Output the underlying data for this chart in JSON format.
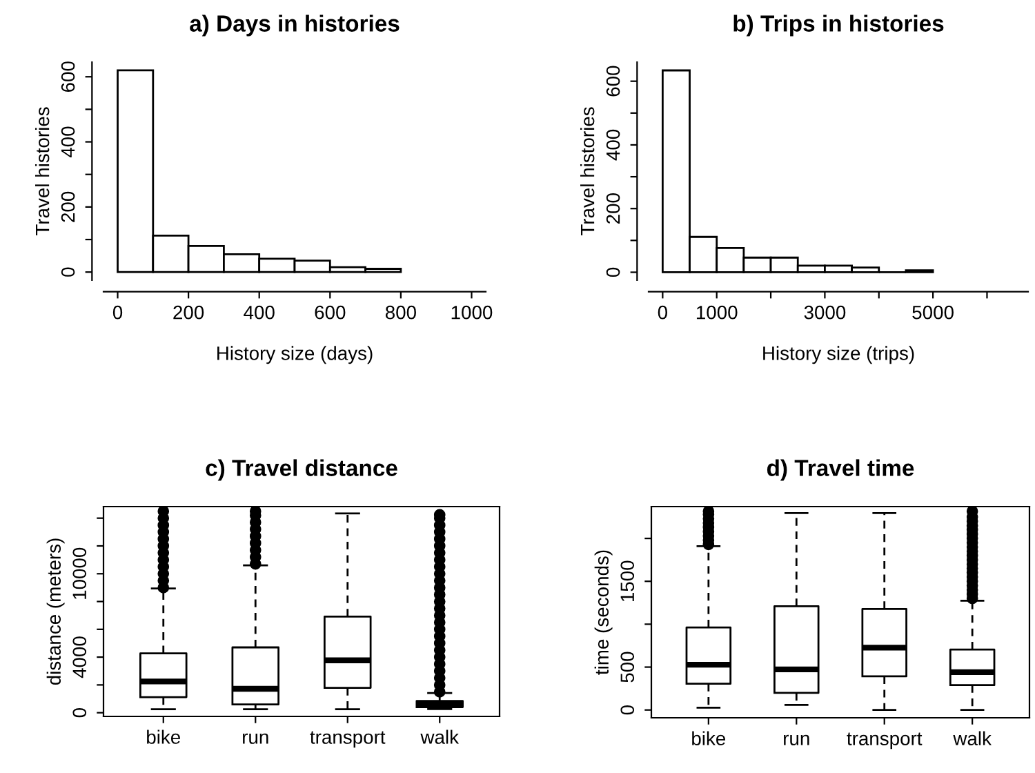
{
  "chart_data": [
    {
      "type": "histogram",
      "title": "a) Days in histories",
      "xlabel": "History size (days)",
      "ylabel": "Travel histories",
      "bins": [
        0,
        100,
        200,
        300,
        400,
        500,
        600,
        700,
        800,
        900,
        1000
      ],
      "values": [
        620,
        112,
        80,
        55,
        41,
        35,
        15,
        10,
        null,
        null
      ],
      "xlim": [
        -40,
        1040
      ],
      "xticks": [
        0,
        200,
        400,
        600,
        800,
        1000
      ],
      "ylim": [
        -25,
        645
      ],
      "yticks": [
        0,
        {
          "value": 100,
          "label": null
        },
        200,
        {
          "value": 300,
          "label": null
        },
        400,
        {
          "value": 500,
          "label": null
        },
        600
      ],
      "grid": false
    },
    {
      "type": "histogram",
      "title": "b) Trips in histories",
      "xlabel": "History size (trips)",
      "ylabel": "Travel histories",
      "bins": [
        0,
        500,
        1000,
        1500,
        2000,
        2500,
        3000,
        3500,
        4000,
        4500,
        5000,
        5500,
        6000,
        6500
      ],
      "values": [
        634,
        111,
        76,
        46,
        46,
        21,
        21,
        15,
        0,
        6,
        null,
        null,
        null
      ],
      "xlim": [
        -260,
        6760
      ],
      "xticks": [
        0,
        1000,
        {
          "value": 2000,
          "label": null
        },
        3000,
        {
          "value": 4000,
          "label": null
        },
        5000,
        {
          "value": 6000,
          "label": null
        }
      ],
      "ylim": [
        -25,
        660
      ],
      "yticks": [
        0,
        {
          "value": 100,
          "label": null
        },
        200,
        {
          "value": 300,
          "label": null
        },
        400,
        {
          "value": 500,
          "label": null
        },
        600
      ],
      "grid": false
    },
    {
      "type": "box",
      "title": "c) Travel distance",
      "ylabel": "distance (meters)",
      "categories": [
        "bike",
        "run",
        "transport",
        "walk"
      ],
      "boxes": [
        {
          "low": 250,
          "q1": 1120,
          "median": 2250,
          "q3": 4270,
          "high": 8940,
          "outliers": [
            9000,
            9500,
            10000,
            10500,
            11000,
            11500,
            12000,
            12500,
            13000,
            13500,
            14000,
            14500
          ]
        },
        {
          "low": 250,
          "q1": 600,
          "median": 1720,
          "q3": 4700,
          "high": 10600,
          "outliers": [
            10700,
            11200,
            11700,
            12200,
            12700,
            13200,
            13700,
            14200,
            14500
          ]
        },
        {
          "low": 250,
          "q1": 1790,
          "median": 3770,
          "q3": 6920,
          "high": 14340
        },
        {
          "low": 265,
          "q1": 400,
          "median": 600,
          "q3": 850,
          "high": 1420,
          "outliers": [
            1500,
            2000,
            2500,
            3000,
            3500,
            4000,
            4500,
            5000,
            5500,
            6000,
            6500,
            7000,
            7500,
            8000,
            8500,
            9000,
            9500,
            10000,
            10500,
            11000,
            11500,
            12000,
            12500,
            13000,
            13500,
            14000,
            14240
          ]
        }
      ],
      "ylim": [
        -265,
        14830
      ],
      "yticks": [
        0,
        {
          "value": 2000,
          "label": null
        },
        4000,
        {
          "value": 6000,
          "label": null
        },
        {
          "value": 8000,
          "label": null
        },
        10000,
        {
          "value": 12000,
          "label": null
        },
        {
          "value": 14000,
          "label": null
        }
      ],
      "grid": false
    },
    {
      "type": "box",
      "title": "d) Travel time",
      "ylabel": "time (seconds)",
      "categories": [
        "bike",
        "run",
        "transport",
        "walk"
      ],
      "boxes": [
        {
          "low": 27,
          "q1": 306,
          "median": 527,
          "q3": 962,
          "high": 1909,
          "outliers": [
            1930,
            1980,
            2030,
            2080,
            2130,
            2180,
            2230,
            2280,
            2317
          ]
        },
        {
          "low": 59,
          "q1": 199,
          "median": 473,
          "q3": 1210,
          "high": 2296
        },
        {
          "low": 0,
          "q1": 392,
          "median": 726,
          "q3": 1177,
          "high": 2296
        },
        {
          "low": 0,
          "q1": 290,
          "median": 441,
          "q3": 704,
          "high": 1274,
          "outliers": [
            1300,
            1350,
            1400,
            1450,
            1500,
            1550,
            1600,
            1650,
            1700,
            1750,
            1800,
            1850,
            1900,
            1950,
            2000,
            2050,
            2100,
            2150,
            2200,
            2250,
            2317
          ]
        }
      ],
      "ylim": [
        -91,
        2371
      ],
      "yticks": [
        0,
        500,
        {
          "value": 1000,
          "label": null
        },
        1500,
        {
          "value": 2000,
          "label": null
        }
      ],
      "grid": false
    }
  ]
}
